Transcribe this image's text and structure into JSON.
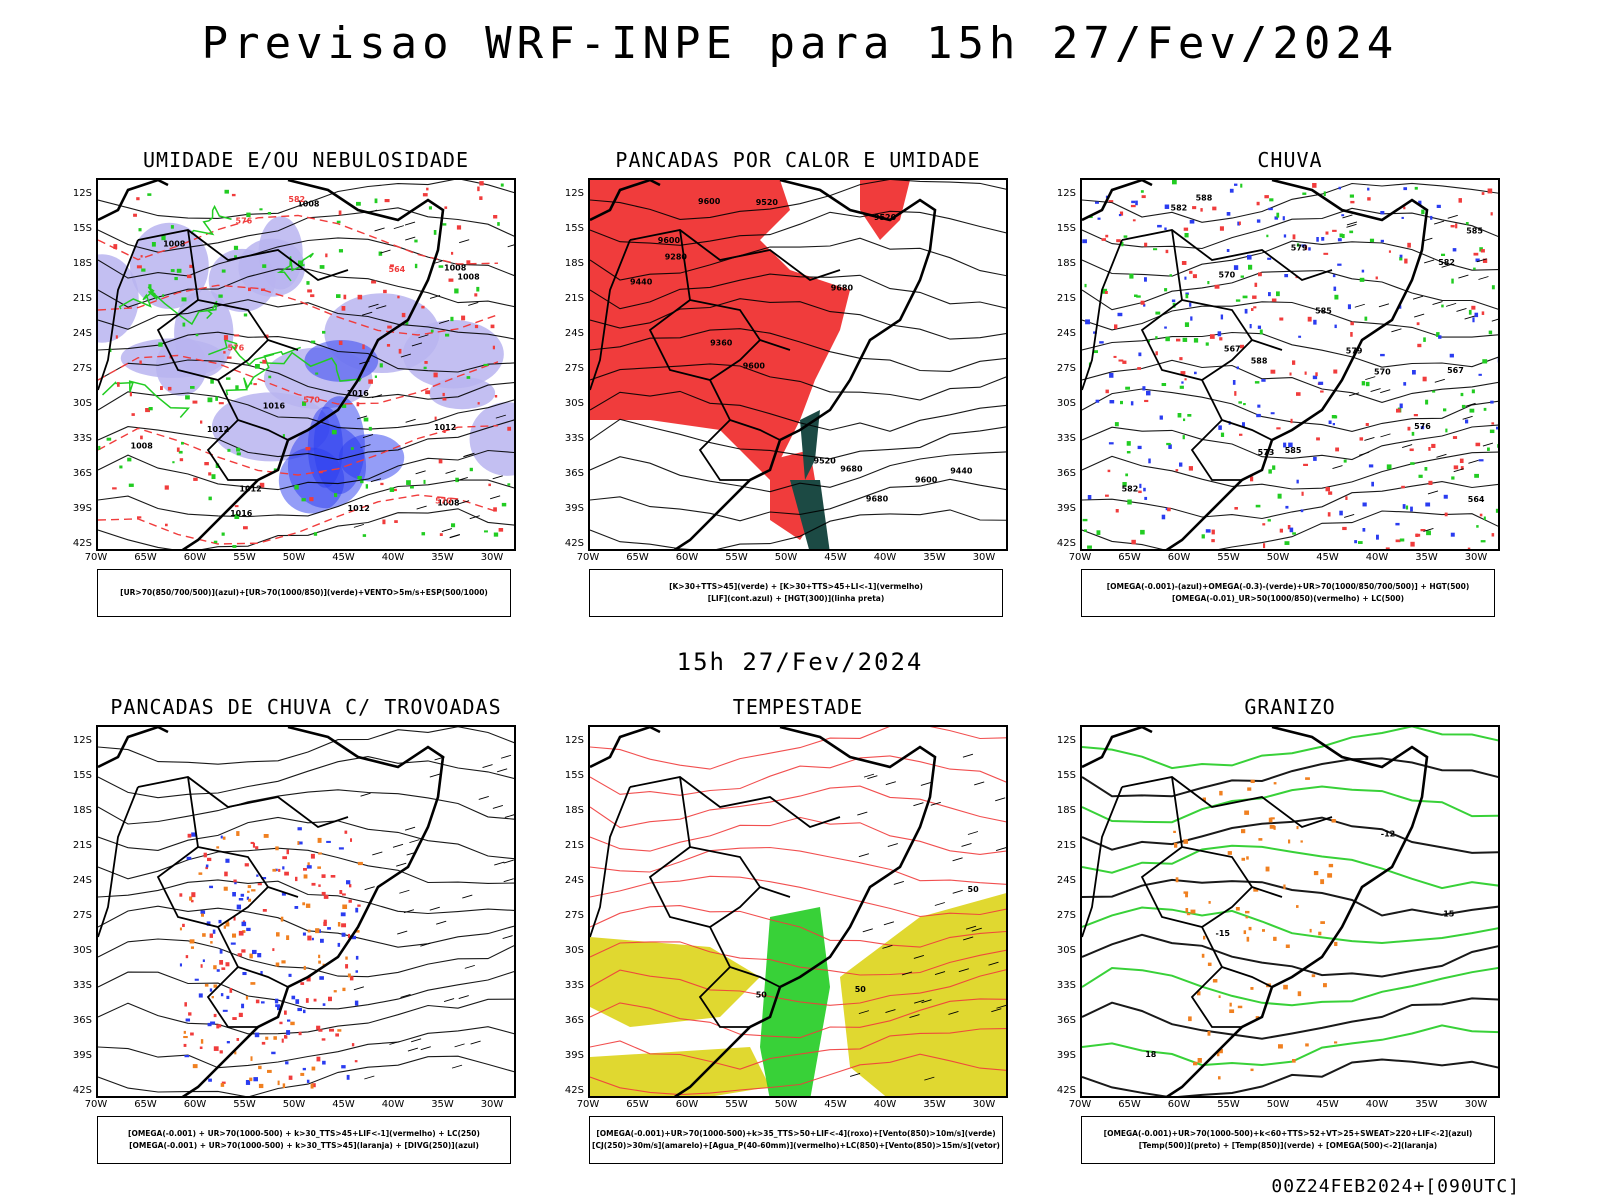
{
  "title": "Previsao WRF-INPE  para 15h 27/Fev/2024",
  "mid_title": "15h 27/Fev/2024",
  "footer": "00Z24FEB2024+[090UTC]",
  "lat_labels": [
    "12S",
    "15S",
    "18S",
    "21S",
    "24S",
    "27S",
    "30S",
    "33S",
    "36S",
    "39S",
    "42S"
  ],
  "lon_labels": [
    "70W",
    "65W",
    "60W",
    "55W",
    "50W",
    "45W",
    "40W",
    "35W",
    "30W"
  ],
  "panels": [
    {
      "title": "UMIDADE E/OU NEBULOSIDADE",
      "legend": [
        "[UR>70(850/700/500)](azul)+[UR>70(1000/850)](verde)+VENTO>5m/s+ESP(500/1000)"
      ],
      "labels": [
        "1012",
        "1012",
        "1008",
        "1008",
        "1008",
        "1012",
        "1008",
        "1008",
        "1016",
        "1012",
        "1008",
        "1016",
        "1016",
        "570",
        "576",
        "582",
        "570",
        "576",
        "564"
      ]
    },
    {
      "title": "PANCADAS POR CALOR E UMIDADE",
      "legend": [
        "[K>30+TTS>45](verde) + [K>30+TTS>45+LI<-1](vermelho)",
        "[LIF](cont.azul) + [HGT(300)](linha preta)"
      ],
      "labels": [
        "9600",
        "9680",
        "9680",
        "9680",
        "9600",
        "9520",
        "9600",
        "9520",
        "9600",
        "9520",
        "9440",
        "9360",
        "9280",
        "9440"
      ]
    },
    {
      "title": "CHUVA",
      "legend": [
        "[OMEGA(-0.001)-(azul)+OMEGA(-0.3)-(verde)+UR>70(1000/850/700/500)] + HGT(500)",
        "[OMEGA(-0.01)_UR>50(1000/850)(vermelho) + LC(500)"
      ],
      "labels": [
        "585",
        "585",
        "585",
        "588",
        "588",
        "582",
        "582",
        "582",
        "579",
        "579",
        "576",
        "573",
        "570",
        "567",
        "564",
        "570",
        "567"
      ]
    },
    {
      "title": "PANCADAS DE CHUVA C/ TROVOADAS",
      "legend": [
        "[OMEGA(-0.001) + UR>70(1000-500) + k>30_TTS>45+LIF<-1](vermelho) + LC(250)",
        "[OMEGA(-0.001) + UR>70(1000-500) + k>30_TTS>45](laranja) + [DIVG(250)](azul)"
      ],
      "labels": []
    },
    {
      "title": "TEMPESTADE",
      "legend": [
        "[OMEGA(-0.001)+UR>70(1000-500)+k>35_TTS>50+LIF<-4](roxo)+[Vento(850)>10m/s](verde)",
        "[CJ(250)>30m/s](amarelo)+[Agua_P(40-60mm)](vermelho)+LC(850)+[Vento(850)>15m/s](vetor)"
      ],
      "labels": [
        "50",
        "50",
        "50"
      ]
    },
    {
      "title": "GRANIZO",
      "legend": [
        "[OMEGA(-0.001)+UR>70(1000-500)+k<60+TTS>52+VT>25+SWEAT>220+LIF<-2](azul)",
        "[Temp(500)](preto) + [Temp(850)](verde) + [OMEGA(500)<-2](laranja)"
      ],
      "labels": [
        "-12",
        "-15",
        "15",
        "18"
      ]
    }
  ],
  "colors": {
    "red": "#f03c3c",
    "blue": "#2a3cf0",
    "green": "#22cc22",
    "lavender": "#b8b4f0",
    "yellow": "#e0d830",
    "orange": "#f08020",
    "darkgreen": "#1c4a44",
    "purple": "#b020c0"
  }
}
